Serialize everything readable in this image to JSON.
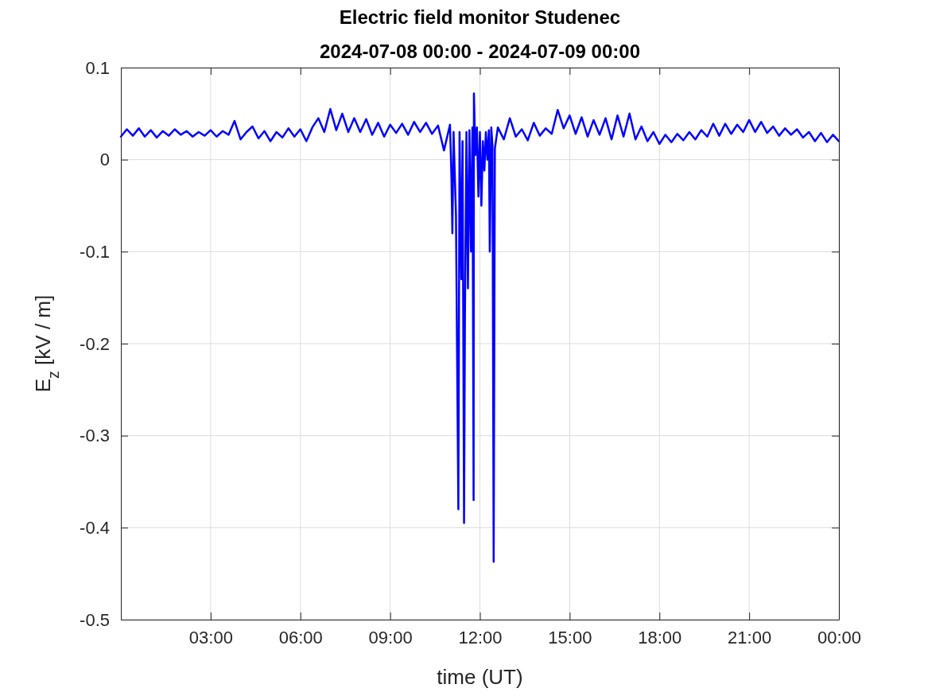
{
  "chart_data": {
    "type": "line",
    "title": "Electric field monitor Studenec",
    "subtitle": "2024-07-08 00:00 - 2024-07-09 00:00",
    "xlabel": "time (UT)",
    "ylabel": "E$_{z}$ [kV / m]",
    "xlim": [
      0,
      24
    ],
    "ylim": [
      -0.5,
      0.1
    ],
    "xticks": [
      {
        "value": 3,
        "label": "03:00"
      },
      {
        "value": 6,
        "label": "06:00"
      },
      {
        "value": 9,
        "label": "09:00"
      },
      {
        "value": 12,
        "label": "12:00"
      },
      {
        "value": 15,
        "label": "15:00"
      },
      {
        "value": 18,
        "label": "18:00"
      },
      {
        "value": 21,
        "label": "21:00"
      },
      {
        "value": 24,
        "label": "00:00"
      }
    ],
    "yticks": [
      -0.5,
      -0.4,
      -0.3,
      -0.2,
      -0.1,
      0,
      0.1
    ],
    "grid": true,
    "marker": "none",
    "line_style": "solid",
    "x": [
      0,
      0.2,
      0.4,
      0.6,
      0.8,
      1.0,
      1.2,
      1.4,
      1.6,
      1.8,
      2.0,
      2.2,
      2.4,
      2.6,
      2.8,
      3.0,
      3.2,
      3.4,
      3.6,
      3.8,
      4.0,
      4.2,
      4.4,
      4.6,
      4.8,
      5.0,
      5.2,
      5.4,
      5.6,
      5.8,
      6.0,
      6.2,
      6.4,
      6.6,
      6.8,
      7.0,
      7.2,
      7.4,
      7.6,
      7.8,
      8.0,
      8.2,
      8.4,
      8.6,
      8.8,
      9.0,
      9.2,
      9.4,
      9.6,
      9.8,
      10.0,
      10.2,
      10.4,
      10.6,
      10.8,
      11.0,
      11.05,
      11.08,
      11.12,
      11.2,
      11.28,
      11.32,
      11.38,
      11.42,
      11.47,
      11.5,
      11.55,
      11.6,
      11.65,
      11.7,
      11.75,
      11.79,
      11.8,
      11.85,
      11.9,
      11.95,
      12.0,
      12.05,
      12.1,
      12.15,
      12.2,
      12.25,
      12.3,
      12.33,
      12.38,
      12.42,
      12.46,
      12.5,
      12.6,
      12.8,
      13.0,
      13.2,
      13.4,
      13.6,
      13.8,
      14.0,
      14.2,
      14.4,
      14.6,
      14.8,
      15.0,
      15.2,
      15.4,
      15.6,
      15.8,
      16.0,
      16.2,
      16.4,
      16.6,
      16.8,
      17.0,
      17.2,
      17.4,
      17.6,
      17.8,
      18.0,
      18.2,
      18.4,
      18.6,
      18.8,
      19.0,
      19.2,
      19.4,
      19.6,
      19.8,
      20.0,
      20.2,
      20.4,
      20.6,
      20.8,
      21.0,
      21.2,
      21.4,
      21.6,
      21.8,
      22.0,
      22.2,
      22.4,
      22.6,
      22.8,
      23.0,
      23.2,
      23.4,
      23.6,
      23.8,
      24.0
    ],
    "series": [
      {
        "color": "#0000ff",
        "values": [
          0.025,
          0.033,
          0.026,
          0.034,
          0.025,
          0.032,
          0.024,
          0.031,
          0.026,
          0.033,
          0.027,
          0.031,
          0.025,
          0.03,
          0.026,
          0.032,
          0.025,
          0.031,
          0.027,
          0.042,
          0.022,
          0.03,
          0.036,
          0.023,
          0.031,
          0.02,
          0.03,
          0.024,
          0.034,
          0.025,
          0.033,
          0.02,
          0.035,
          0.045,
          0.03,
          0.055,
          0.032,
          0.05,
          0.03,
          0.045,
          0.03,
          0.044,
          0.027,
          0.04,
          0.025,
          0.038,
          0.029,
          0.039,
          0.027,
          0.041,
          0.03,
          0.04,
          0.028,
          0.037,
          0.01,
          0.038,
          -0.02,
          -0.08,
          0.03,
          -0.06,
          -0.38,
          0.03,
          -0.13,
          0.02,
          -0.395,
          -0.17,
          0.03,
          -0.14,
          0.032,
          -0.1,
          0.035,
          -0.37,
          0.072,
          0.005,
          0.035,
          -0.04,
          0.03,
          -0.05,
          0.02,
          -0.012,
          0.03,
          0.0,
          0.032,
          -0.1,
          0.035,
          0.015,
          -0.437,
          0.012,
          0.035,
          0.022,
          0.045,
          0.025,
          0.033,
          0.021,
          0.04,
          0.026,
          0.034,
          0.028,
          0.054,
          0.034,
          0.048,
          0.028,
          0.046,
          0.025,
          0.043,
          0.027,
          0.045,
          0.022,
          0.048,
          0.025,
          0.05,
          0.022,
          0.036,
          0.02,
          0.03,
          0.017,
          0.027,
          0.019,
          0.028,
          0.021,
          0.03,
          0.022,
          0.032,
          0.025,
          0.039,
          0.026,
          0.039,
          0.028,
          0.038,
          0.03,
          0.043,
          0.03,
          0.041,
          0.029,
          0.036,
          0.026,
          0.034,
          0.027,
          0.033,
          0.024,
          0.03,
          0.02,
          0.029,
          0.019,
          0.027,
          0.02
        ]
      }
    ]
  }
}
